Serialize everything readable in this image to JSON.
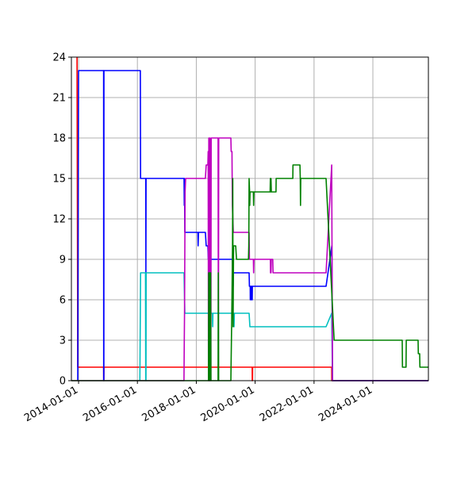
{
  "chart_data": {
    "type": "line",
    "title": "",
    "xlabel": "",
    "ylabel": "",
    "x_type": "date",
    "xlim": [
      "2013-10-04",
      "2025-11-20"
    ],
    "ylim": [
      0,
      24
    ],
    "grid": true,
    "legend": "none",
    "x_ticks": [
      "2014-01-01",
      "2016-01-01",
      "2018-01-01",
      "2020-01-01",
      "2022-01-01",
      "2024-01-01"
    ],
    "y_ticks": [
      0,
      3,
      6,
      9,
      12,
      15,
      18,
      21,
      24
    ],
    "series": [
      {
        "color": "#ff0000",
        "points": [
          [
            "2013-12-13",
            24
          ],
          [
            "2013-12-22",
            1
          ],
          [
            "2014-11-08",
            1
          ],
          [
            "2014-11-09",
            0
          ],
          [
            "2014-11-11",
            0
          ],
          [
            "2014-11-12",
            1
          ],
          [
            "2019-11-26",
            1
          ],
          [
            "2019-11-27",
            0
          ],
          [
            "2019-11-29",
            0
          ],
          [
            "2019-11-30",
            1
          ],
          [
            "2022-08-08",
            1
          ],
          [
            "2022-08-09",
            0
          ],
          [
            "2025-11-20",
            0
          ]
        ]
      },
      {
        "color": "#0000ff",
        "points": [
          [
            "2013-12-22",
            0
          ],
          [
            "2014-01-01",
            23
          ],
          [
            "2014-11-08",
            23
          ],
          [
            "2014-11-09",
            0
          ],
          [
            "2014-11-11",
            0
          ],
          [
            "2014-11-12",
            23
          ],
          [
            "2016-02-06",
            23
          ],
          [
            "2016-02-09",
            15
          ],
          [
            "2016-04-13",
            15
          ],
          [
            "2016-04-15",
            8
          ],
          [
            "2016-04-17",
            15
          ],
          [
            "2017-08-02",
            15
          ],
          [
            "2017-08-05",
            13
          ],
          [
            "2017-08-08",
            15
          ],
          [
            "2017-08-12",
            11
          ],
          [
            "2018-01-20",
            11
          ],
          [
            "2018-01-23",
            10
          ],
          [
            "2018-01-28",
            11
          ],
          [
            "2018-04-24",
            11
          ],
          [
            "2018-05-04",
            10
          ],
          [
            "2018-05-24",
            10
          ],
          [
            "2018-05-30",
            9
          ],
          [
            "2019-03-24",
            9
          ],
          [
            "2019-03-28",
            8
          ],
          [
            "2019-04-03",
            7
          ],
          [
            "2019-04-07",
            8
          ],
          [
            "2019-10-18",
            8
          ],
          [
            "2019-10-22",
            7
          ],
          [
            "2019-11-01",
            7
          ],
          [
            "2019-11-02",
            6
          ],
          [
            "2019-11-04",
            7
          ],
          [
            "2019-11-15",
            7
          ],
          [
            "2019-11-16",
            6
          ],
          [
            "2019-11-18",
            7
          ],
          [
            "2019-11-25",
            7
          ],
          [
            "2019-11-26",
            6
          ],
          [
            "2019-11-28",
            7
          ],
          [
            "2022-05-30",
            7
          ],
          [
            "2022-08-10",
            10
          ],
          [
            "2022-08-18",
            0
          ],
          [
            "2025-11-20",
            0
          ]
        ]
      },
      {
        "color": "#00bfbf",
        "points": [
          [
            "2016-02-01",
            0
          ],
          [
            "2016-02-09",
            8
          ],
          [
            "2016-04-10",
            8
          ],
          [
            "2016-04-13",
            0
          ],
          [
            "2016-04-16",
            0
          ],
          [
            "2016-04-18",
            8
          ],
          [
            "2017-08-02",
            8
          ],
          [
            "2017-08-05",
            7
          ],
          [
            "2017-08-12",
            5
          ],
          [
            "2018-06-10",
            5
          ],
          [
            "2018-06-13",
            4
          ],
          [
            "2018-06-20",
            4
          ],
          [
            "2018-06-25",
            5
          ],
          [
            "2018-07-20",
            5
          ],
          [
            "2018-07-23",
            4
          ],
          [
            "2018-07-26",
            5
          ],
          [
            "2019-04-10",
            5
          ],
          [
            "2019-04-14",
            4
          ],
          [
            "2019-04-18",
            5
          ],
          [
            "2019-10-18",
            5
          ],
          [
            "2019-10-28",
            4
          ],
          [
            "2022-05-30",
            4
          ],
          [
            "2022-08-08",
            5
          ],
          [
            "2022-08-18",
            0
          ],
          [
            "2025-11-20",
            0
          ]
        ]
      },
      {
        "color": "#bf00bf",
        "points": [
          [
            "2013-10-04",
            0
          ],
          [
            "2017-08-01",
            0
          ],
          [
            "2017-08-05",
            3
          ],
          [
            "2017-08-08",
            5
          ],
          [
            "2017-08-15",
            14
          ],
          [
            "2017-08-22",
            15
          ],
          [
            "2018-04-24",
            15
          ],
          [
            "2018-05-04",
            16
          ],
          [
            "2018-05-24",
            16
          ],
          [
            "2018-05-28",
            17
          ],
          [
            "2018-06-01",
            0
          ],
          [
            "2018-06-05",
            18
          ],
          [
            "2018-06-09",
            0
          ],
          [
            "2018-06-13",
            18
          ],
          [
            "2018-06-17",
            0
          ],
          [
            "2018-06-21",
            18
          ],
          [
            "2018-07-01",
            0
          ],
          [
            "2018-07-05",
            18
          ],
          [
            "2018-09-28",
            18
          ],
          [
            "2018-10-02",
            0
          ],
          [
            "2018-10-06",
            18
          ],
          [
            "2019-03-06",
            18
          ],
          [
            "2019-03-10",
            17
          ],
          [
            "2019-03-20",
            17
          ],
          [
            "2019-03-24",
            13
          ],
          [
            "2019-04-05",
            11
          ],
          [
            "2019-10-18",
            11
          ],
          [
            "2019-10-22",
            9
          ],
          [
            "2019-12-10",
            9
          ],
          [
            "2019-12-13",
            8
          ],
          [
            "2019-12-17",
            9
          ],
          [
            "2020-07-08",
            9
          ],
          [
            "2020-07-10",
            8
          ],
          [
            "2020-07-13",
            9
          ],
          [
            "2020-07-16",
            8
          ],
          [
            "2020-07-20",
            9
          ],
          [
            "2020-08-07",
            9
          ],
          [
            "2020-08-10",
            8
          ],
          [
            "2022-05-30",
            8
          ],
          [
            "2022-08-08",
            16
          ],
          [
            "2022-08-18",
            0
          ],
          [
            "2025-11-20",
            0
          ]
        ]
      },
      {
        "color": "#008000",
        "points": [
          [
            "2013-10-04",
            0
          ],
          [
            "2018-06-01",
            0
          ],
          [
            "2018-06-04",
            8
          ],
          [
            "2018-06-08",
            0
          ],
          [
            "2018-06-12",
            8
          ],
          [
            "2018-06-16",
            0
          ],
          [
            "2018-06-20",
            8
          ],
          [
            "2018-06-24",
            0
          ],
          [
            "2018-06-28",
            8
          ],
          [
            "2018-07-02",
            0
          ],
          [
            "2018-09-28",
            0
          ],
          [
            "2018-10-01",
            8
          ],
          [
            "2018-10-05",
            0
          ],
          [
            "2019-03-06",
            0
          ],
          [
            "2019-03-20",
            6
          ],
          [
            "2019-03-26",
            10
          ],
          [
            "2019-03-29",
            15
          ],
          [
            "2019-04-02",
            4
          ],
          [
            "2019-04-08",
            10
          ],
          [
            "2019-05-05",
            10
          ],
          [
            "2019-05-15",
            9
          ],
          [
            "2019-10-10",
            9
          ],
          [
            "2019-10-14",
            10
          ],
          [
            "2019-10-18",
            15
          ],
          [
            "2019-10-24",
            14
          ],
          [
            "2019-10-26",
            13
          ],
          [
            "2019-10-30",
            14
          ],
          [
            "2019-12-10",
            14
          ],
          [
            "2019-12-13",
            13
          ],
          [
            "2019-12-17",
            14
          ],
          [
            "2020-07-05",
            14
          ],
          [
            "2020-07-08",
            15
          ],
          [
            "2020-07-12",
            14
          ],
          [
            "2020-07-16",
            15
          ],
          [
            "2020-07-20",
            14
          ],
          [
            "2020-09-16",
            14
          ],
          [
            "2020-09-18",
            15
          ],
          [
            "2021-04-13",
            15
          ],
          [
            "2021-04-15",
            16
          ],
          [
            "2021-07-10",
            16
          ],
          [
            "2021-07-14",
            15
          ],
          [
            "2021-07-17",
            13
          ],
          [
            "2021-07-20",
            15
          ],
          [
            "2022-05-30",
            15
          ],
          [
            "2022-09-07",
            3
          ],
          [
            "2024-12-30",
            3
          ],
          [
            "2025-01-02",
            1
          ],
          [
            "2025-02-15",
            1
          ],
          [
            "2025-02-18",
            3
          ],
          [
            "2025-07-15",
            3
          ],
          [
            "2025-07-18",
            2
          ],
          [
            "2025-08-04",
            2
          ],
          [
            "2025-08-07",
            1
          ],
          [
            "2025-11-20",
            1
          ]
        ]
      }
    ]
  }
}
